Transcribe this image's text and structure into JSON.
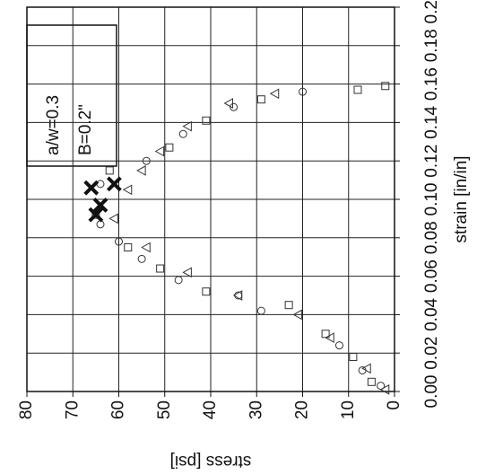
{
  "chart_data": {
    "type": "scatter",
    "xlabel": "strain [in/in]",
    "ylabel": "stress [psi]",
    "annotations": [
      "a/w=0.3",
      "B=0.2\""
    ],
    "xlim": [
      0,
      0.2
    ],
    "ylim": [
      0,
      80
    ],
    "xticks": [
      {
        "value": 0,
        "label": "0.00"
      },
      {
        "value": 0.02,
        "label": "0.02"
      },
      {
        "value": 0.04,
        "label": "0.04"
      },
      {
        "value": 0.06,
        "label": "0.06"
      },
      {
        "value": 0.08,
        "label": "0.08"
      },
      {
        "value": 0.1,
        "label": "0.10"
      },
      {
        "value": 0.12,
        "label": "0.12"
      },
      {
        "value": 0.14,
        "label": "0.14"
      },
      {
        "value": 0.16,
        "label": "0.16"
      },
      {
        "value": 0.18,
        "label": "0.18"
      },
      {
        "value": 0.2,
        "label": "0.20"
      }
    ],
    "yticks": [
      0,
      10,
      20,
      30,
      40,
      50,
      60,
      70,
      80
    ],
    "grid": true,
    "series": [
      {
        "marker": "circle",
        "color": "#333333",
        "x": [
          0.003,
          0.011,
          0.024,
          0.042,
          0.05,
          0.058,
          0.069,
          0.078,
          0.087,
          0.108,
          0.12,
          0.134,
          0.148,
          0.156
        ],
        "values": [
          3,
          7,
          12,
          29,
          34,
          47,
          55,
          60,
          64,
          64,
          54,
          46,
          35,
          20
        ]
      },
      {
        "marker": "square",
        "color": "#333333",
        "x": [
          0.005,
          0.018,
          0.03,
          0.045,
          0.052,
          0.064,
          0.075,
          0.092,
          0.115,
          0.127,
          0.141,
          0.152,
          0.157,
          0.159
        ],
        "values": [
          5,
          9,
          15,
          23,
          41,
          51,
          58,
          65,
          62,
          49,
          41,
          29,
          8,
          2
        ]
      },
      {
        "marker": "triangle",
        "color": "#333333",
        "x": [
          0.001,
          0.012,
          0.028,
          0.04,
          0.05,
          0.062,
          0.075,
          0.09,
          0.105,
          0.115,
          0.125,
          0.138,
          0.15,
          0.155
        ],
        "values": [
          2,
          6,
          14,
          21,
          34,
          45,
          54,
          61,
          58,
          55,
          51,
          45,
          36,
          26
        ]
      },
      {
        "marker": "cross",
        "color": "#111111",
        "x": [
          0.106,
          0.092,
          0.108,
          0.097
        ],
        "values": [
          66,
          65,
          61,
          64
        ]
      }
    ]
  }
}
